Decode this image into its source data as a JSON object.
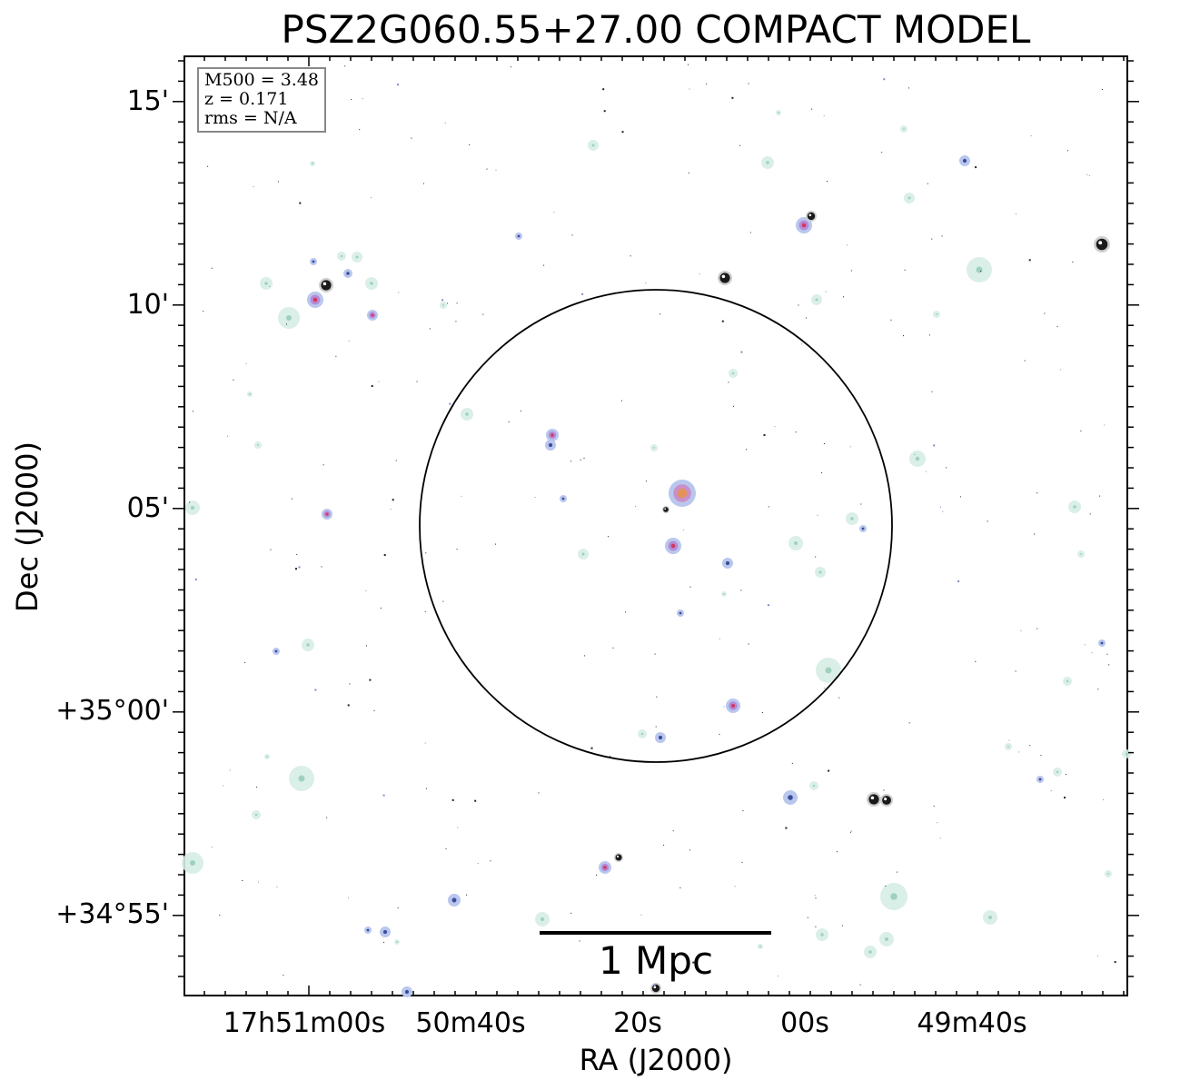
{
  "title": "PSZ2G060.55+27.00 COMPACT MODEL",
  "info": {
    "m500": "M500 = 3.48",
    "z": "z = 0.171",
    "rms": "rms = N/A"
  },
  "axes": {
    "xlabel": "RA (J2000)",
    "ylabel": "Dec (J2000)",
    "x_ticks": [
      "17h51m00s",
      "50m40s",
      "20s",
      "00s",
      "49m40s"
    ],
    "y_ticks": [
      "15'",
      "10'",
      "05'",
      "+35°00'",
      "+34°55'"
    ]
  },
  "scalebar": {
    "label": "1 Mpc"
  },
  "colors": {
    "frame": "#000000",
    "circle": "#000000",
    "infobox_border": "#888888",
    "source_faint": "#d6ede4",
    "source_blue": "#b9c7ee",
    "source_purple": "#b58ad6",
    "source_orange": "#e3925a",
    "source_core": "#1a1a1a"
  }
}
